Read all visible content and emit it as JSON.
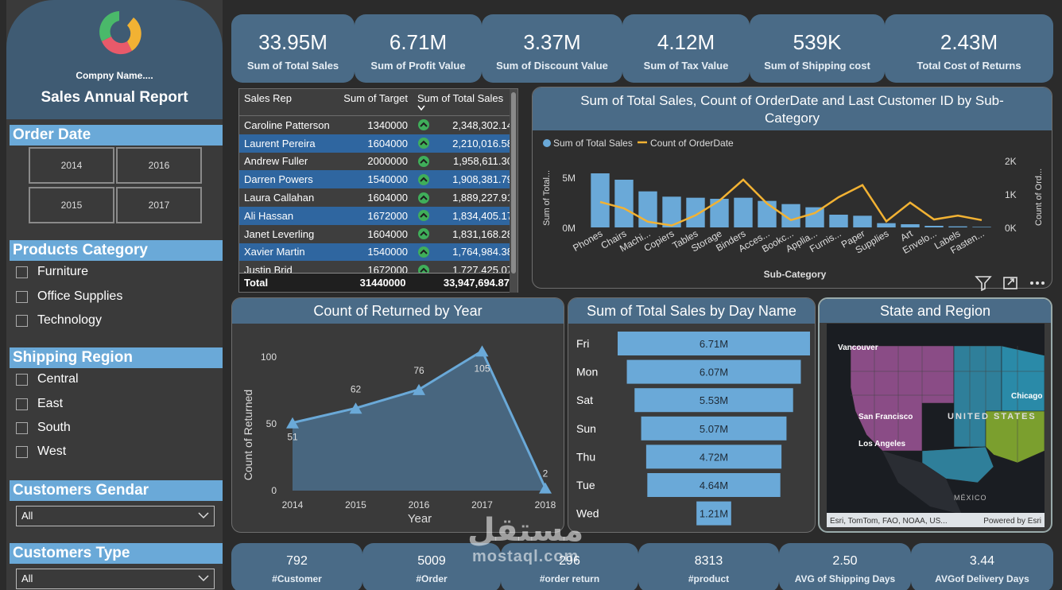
{
  "sidebar": {
    "company": "Compny Name....",
    "report_title": "Sales Annual Report",
    "order_date": {
      "heading": "Order Date",
      "years": [
        "2014",
        "2016",
        "2015",
        "2017"
      ]
    },
    "products_category": {
      "heading": "Products Category",
      "items": [
        "Furniture",
        "Office Supplies",
        "Technology"
      ]
    },
    "shipping_region": {
      "heading": "Shipping Region",
      "items": [
        "Central",
        "East",
        "South",
        "West"
      ]
    },
    "customers_gender": {
      "heading": "Customers Gendar",
      "value": "All"
    },
    "customers_type": {
      "heading": "Customers Type",
      "value": "All"
    }
  },
  "kpis": [
    {
      "value": "33.95M",
      "label": "Sum of Total Sales"
    },
    {
      "value": "6.71M",
      "label": "Sum of Profit Value"
    },
    {
      "value": "3.37M",
      "label": "Sum of Discount Value"
    },
    {
      "value": "4.12M",
      "label": "Sum of Tax Value"
    },
    {
      "value": "539K",
      "label": "Sum of Shipping cost"
    },
    {
      "value": "2.43M",
      "label": "Total Cost of Returns"
    }
  ],
  "table": {
    "headers": [
      "Sales Rep",
      "Sum of Target",
      "Sum of Total Sales"
    ],
    "rows": [
      [
        "Caroline Patterson",
        "1340000",
        "2,348,302.14"
      ],
      [
        "Laurent Pereira",
        "1604000",
        "2,210,016.58"
      ],
      [
        "Andrew Fuller",
        "2000000",
        "1,958,611.30"
      ],
      [
        "Darren Powers",
        "1540000",
        "1,908,381.79"
      ],
      [
        "Laura Callahan",
        "1604000",
        "1,889,227.91"
      ],
      [
        "Ali Hassan",
        "1672000",
        "1,834,405.17"
      ],
      [
        "Janet Leverling",
        "1604000",
        "1,831,168.28"
      ],
      [
        "Xavier Martin",
        "1540000",
        "1,764,984.38"
      ],
      [
        "Justin Brid",
        "1672000",
        "1,727,425.07"
      ]
    ],
    "total": [
      "Total",
      "31440000",
      "33,947,694.87"
    ]
  },
  "combo": {
    "title": "Sum of Total Sales, Count of OrderDate and Last Customer ID by Sub-Category",
    "legend": [
      "Sum of Total Sales",
      "Count of OrderDate"
    ],
    "ylabel_left": "Sum of Total...",
    "ylabel_right": "Count of Ord...",
    "xlabel": "Sub-Category",
    "yticks_left": [
      "5M",
      "0M"
    ],
    "yticks_right": [
      "2K",
      "1K",
      "0K"
    ]
  },
  "returned": {
    "title": "Count of Returned by Year",
    "xlabel": "Year",
    "ylabel": "Count of Returned",
    "yticks": [
      "100",
      "50",
      "0"
    ]
  },
  "day": {
    "title": "Sum of Total Sales by Day Name"
  },
  "map": {
    "title": "State and Region",
    "labels": [
      "Vancouver",
      "San Francisco",
      "Los Angeles",
      "UNITED STATES",
      "Chicago",
      "MÉXICO"
    ],
    "attribution": "Esri, TomTom, FAO, NOAA, US...",
    "powered": "Powered by Esri"
  },
  "bottom_kpis": [
    {
      "value": "792",
      "label": "#Customer"
    },
    {
      "value": "5009",
      "label": "#Order"
    },
    {
      "value": "296",
      "label": "#order return"
    },
    {
      "value": "8313",
      "label": "#product"
    },
    {
      "value": "2.50",
      "label": "AVG of Shipping Days"
    },
    {
      "value": "3.44",
      "label": "AVGof Delivery Days"
    }
  ],
  "watermark": {
    "ar": "مستقل",
    "en": "mostaql.com"
  },
  "colors": {
    "accent": "#6aa9d8",
    "card": "#4a6b87",
    "line": "#f2b233",
    "background": "#2b2b2b"
  },
  "chart_data": [
    {
      "type": "bar",
      "title": "Sum of Total Sales, Count of OrderDate and Last Customer ID by Sub-Category",
      "xlabel": "Sub-Category",
      "ylabel": "Sum of Total...",
      "categories": [
        "Phones",
        "Chairs",
        "Machi...",
        "Copiers",
        "Tables",
        "Storage",
        "Binders",
        "Acces...",
        "Bookc...",
        "Applia...",
        "Furnis...",
        "Paper",
        "Supplies",
        "Art",
        "Envelo...",
        "Labels",
        "Fasten..."
      ],
      "series": [
        {
          "name": "Sum of Total Sales",
          "values": [
            5.1,
            4.5,
            3.4,
            2.9,
            2.8,
            2.7,
            2.8,
            2.5,
            2.2,
            1.9,
            1.2,
            1.1,
            0.4,
            0.3,
            0.15,
            0.1,
            0.05
          ]
        },
        {
          "name": "Count of OrderDate",
          "values": [
            800,
            600,
            180,
            60,
            380,
            840,
            1500,
            750,
            230,
            450,
            950,
            1330,
            190,
            780,
            250,
            370,
            230
          ]
        }
      ],
      "ylim": [
        0,
        6.6
      ],
      "ylim_right": [
        0,
        2200
      ]
    },
    {
      "type": "area",
      "title": "Count of Returned by Year",
      "xlabel": "Year",
      "ylabel": "Count of Returned",
      "x": [
        "2014",
        "2015",
        "2016",
        "2017",
        "2018"
      ],
      "values": [
        51,
        62,
        76,
        105,
        2
      ],
      "ylim": [
        0,
        110
      ]
    },
    {
      "type": "bar",
      "title": "Sum of Total Sales by Day Name",
      "categories": [
        "Fri",
        "Mon",
        "Sat",
        "Sun",
        "Thu",
        "Tue",
        "Wed"
      ],
      "values": [
        6.71,
        6.07,
        5.53,
        5.07,
        4.72,
        4.64,
        1.21
      ],
      "labels": [
        "6.71M",
        "6.07M",
        "5.53M",
        "5.07M",
        "4.72M",
        "4.64M",
        "1.21M"
      ]
    }
  ]
}
